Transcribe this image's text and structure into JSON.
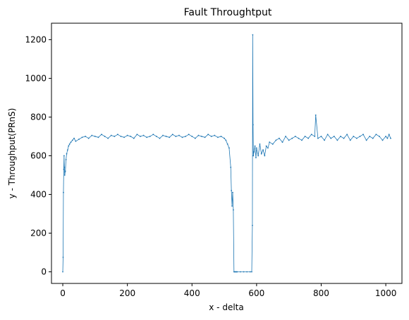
{
  "chart_data": {
    "type": "line",
    "title": "Fault Throughtput",
    "xlabel": "x - delta",
    "ylabel": "y - Throughput(PRnS)",
    "xlim": [
      -35,
      1050
    ],
    "ylim": [
      -60,
      1285
    ],
    "xticks": [
      0,
      200,
      400,
      600,
      800,
      1000
    ],
    "yticks": [
      0,
      200,
      400,
      600,
      800,
      1000,
      1200
    ],
    "grid": false,
    "legend": "none",
    "line_color": "#1f77b4",
    "marker": "dot",
    "series": [
      {
        "x": [
          0,
          1,
          2,
          3,
          4,
          5,
          6,
          8,
          10,
          12,
          15,
          18,
          21,
          25,
          30,
          35,
          40,
          50,
          60,
          70,
          80,
          90,
          100,
          110,
          120,
          130,
          140,
          150,
          160,
          170,
          180,
          190,
          200,
          210,
          220,
          230,
          240,
          250,
          260,
          270,
          280,
          290,
          300,
          310,
          320,
          330,
          340,
          350,
          360,
          370,
          380,
          390,
          400,
          410,
          420,
          430,
          440,
          450,
          460,
          470,
          480,
          490,
          500,
          505,
          510,
          515,
          520,
          522,
          524,
          526,
          528,
          530,
          532,
          534,
          536,
          538,
          540,
          550,
          560,
          570,
          580,
          585,
          587,
          588,
          589,
          590,
          592,
          595,
          598,
          600,
          605,
          610,
          615,
          620,
          625,
          630,
          635,
          640,
          650,
          660,
          670,
          680,
          690,
          700,
          710,
          720,
          730,
          740,
          750,
          760,
          770,
          780,
          783,
          790,
          800,
          810,
          820,
          830,
          840,
          850,
          860,
          870,
          880,
          890,
          900,
          910,
          920,
          930,
          940,
          950,
          960,
          970,
          980,
          990,
          1000,
          1005,
          1010,
          1015
        ],
        "y": [
          0,
          75,
          410,
          530,
          600,
          540,
          500,
          520,
          580,
          610,
          630,
          650,
          660,
          670,
          680,
          690,
          675,
          685,
          695,
          700,
          690,
          705,
          700,
          695,
          710,
          700,
          690,
          705,
          700,
          710,
          700,
          695,
          705,
          700,
          690,
          710,
          700,
          705,
          695,
          700,
          710,
          700,
          690,
          705,
          700,
          695,
          710,
          700,
          705,
          695,
          700,
          710,
          700,
          690,
          705,
          700,
          695,
          710,
          700,
          705,
          695,
          700,
          690,
          680,
          660,
          640,
          540,
          420,
          340,
          410,
          320,
          0,
          0,
          0,
          0,
          0,
          0,
          0,
          0,
          0,
          0,
          0,
          240,
          1225,
          760,
          600,
          620,
          650,
          590,
          640,
          600,
          660,
          610,
          630,
          600,
          650,
          640,
          670,
          660,
          680,
          690,
          670,
          700,
          680,
          690,
          700,
          690,
          680,
          700,
          690,
          710,
          700,
          810,
          690,
          700,
          680,
          710,
          690,
          700,
          680,
          700,
          690,
          710,
          680,
          700,
          690,
          700,
          710,
          680,
          700,
          690,
          710,
          700,
          680,
          700,
          690,
          710,
          690
        ]
      }
    ]
  }
}
